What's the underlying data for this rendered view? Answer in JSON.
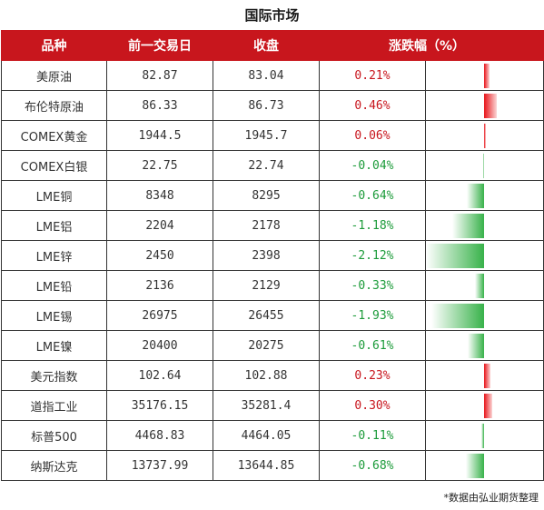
{
  "title": "国际市场",
  "headers": {
    "name": "品种",
    "prev": "前一交易日",
    "close": "收盘",
    "change": "涨跌幅（%）"
  },
  "rows": [
    {
      "name": "美原油",
      "prev": "82.87",
      "close": "83.04",
      "change": "0.21%",
      "value": 0.21
    },
    {
      "name": "布伦特原油",
      "prev": "86.33",
      "close": "86.73",
      "change": "0.46%",
      "value": 0.46
    },
    {
      "name": "COMEX黄金",
      "prev": "1944.5",
      "close": "1945.7",
      "change": "0.06%",
      "value": 0.06
    },
    {
      "name": "COMEX白银",
      "prev": "22.75",
      "close": "22.74",
      "change": "-0.04%",
      "value": -0.04
    },
    {
      "name": "LME铜",
      "prev": "8348",
      "close": "8295",
      "change": "-0.64%",
      "value": -0.64
    },
    {
      "name": "LME铝",
      "prev": "2204",
      "close": "2178",
      "change": "-1.18%",
      "value": -1.18
    },
    {
      "name": "LME锌",
      "prev": "2450",
      "close": "2398",
      "change": "-2.12%",
      "value": -2.12
    },
    {
      "name": "LME铅",
      "prev": "2136",
      "close": "2129",
      "change": "-0.33%",
      "value": -0.33
    },
    {
      "name": "LME锡",
      "prev": "26975",
      "close": "26455",
      "change": "-1.93%",
      "value": -1.93
    },
    {
      "name": "LME镍",
      "prev": "20400",
      "close": "20275",
      "change": "-0.61%",
      "value": -0.61
    },
    {
      "name": "美元指数",
      "prev": "102.64",
      "close": "102.88",
      "change": "0.23%",
      "value": 0.23
    },
    {
      "name": "道指工业",
      "prev": "35176.15",
      "close": "35281.4",
      "change": "0.30%",
      "value": 0.3
    },
    {
      "name": "标普500",
      "prev": "4468.83",
      "close": "4464.05",
      "change": "-0.11%",
      "value": -0.11
    },
    {
      "name": "纳斯达克",
      "prev": "13737.99",
      "close": "13644.85",
      "change": "-0.68%",
      "value": -0.68
    }
  ],
  "colors": {
    "header_bg": "#c8161d",
    "up": "#c8161d",
    "down": "#1c9b3a",
    "bar_up": "#e8141a",
    "bar_down": "#38b24a"
  },
  "footnote": "*数据由弘业期货整理"
}
